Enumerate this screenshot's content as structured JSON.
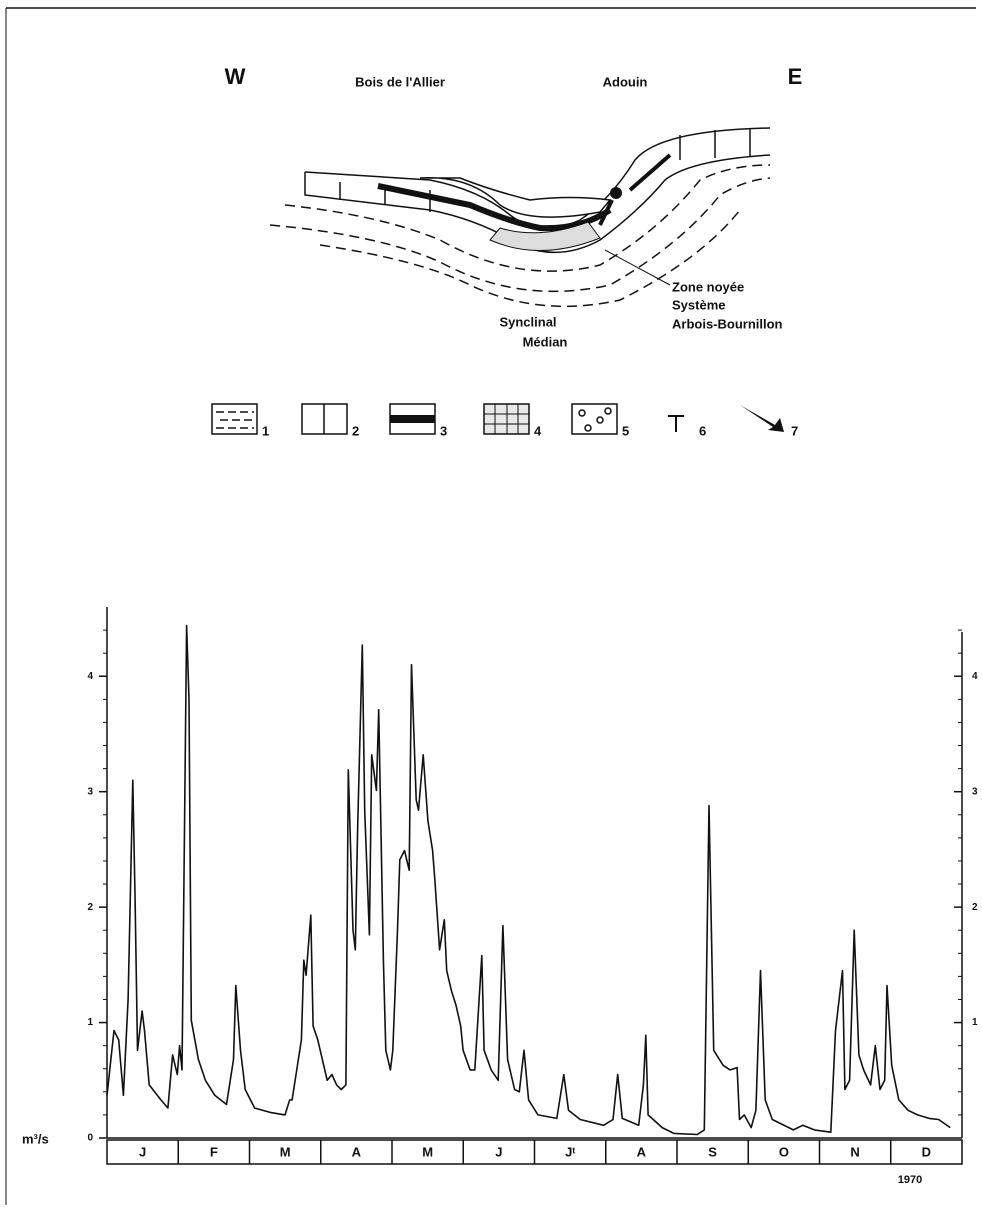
{
  "diagram": {
    "west": "W",
    "east": "E",
    "places": [
      "Bois de l'Allier",
      "Adouin"
    ],
    "zone": [
      "Zone noyée",
      "Système",
      "Arbois-Bournillon"
    ],
    "syncline": [
      "Synclinal",
      "Médian"
    ],
    "legend": [
      "1",
      "2",
      "3",
      "4",
      "5",
      "6",
      "7"
    ]
  },
  "chart_data": {
    "type": "line",
    "y_label": "m³/s",
    "year": "1970",
    "months": [
      "J",
      "F",
      "M",
      "A",
      "M",
      "J",
      "Jᵗ",
      "A",
      "S",
      "O",
      "N",
      "D"
    ],
    "xlim": [
      0,
      365
    ],
    "ylim": [
      0,
      4.6
    ],
    "yticks": [
      0,
      1,
      2,
      3,
      4
    ],
    "minor_yticks": [
      0.2,
      0.4,
      0.6,
      0.8,
      1.2,
      1.4,
      1.6,
      1.8,
      2.2,
      2.4,
      2.6,
      2.8,
      3.2,
      3.4,
      3.6,
      3.8,
      4.2,
      4.4
    ],
    "color": "#111111",
    "x": [
      0,
      3,
      5,
      7,
      9,
      11,
      12,
      13,
      15,
      16,
      18,
      23,
      26,
      28,
      30,
      31,
      32,
      34,
      35,
      36,
      39,
      42,
      46,
      51,
      54,
      55,
      57,
      59,
      63,
      70,
      76,
      78,
      79,
      83,
      84,
      85,
      87,
      88,
      90,
      91,
      94,
      96,
      98,
      100,
      102,
      103,
      105,
      106,
      107,
      109,
      110,
      112,
      113,
      115,
      116,
      118,
      119,
      121,
      122,
      124,
      125,
      127,
      129,
      130,
      132,
      133,
      135,
      137,
      139,
      140,
      142,
      144,
      145,
      147,
      149,
      151,
      152,
      155,
      157,
      160,
      161,
      164,
      167,
      169,
      171,
      174,
      176,
      178,
      180,
      184,
      192,
      195,
      197,
      202,
      212,
      216,
      218,
      220,
      227,
      229,
      230,
      231,
      237,
      242,
      252,
      255,
      257,
      259,
      263,
      266,
      269,
      270,
      272,
      275,
      277,
      279,
      281,
      284,
      293,
      297,
      302,
      309,
      311,
      314,
      315,
      317,
      319,
      321,
      323,
      326,
      328,
      330,
      332,
      333,
      335,
      338,
      342,
      346,
      351,
      355,
      360
    ],
    "values": [
      0.37,
      0.93,
      0.85,
      0.37,
      1.2,
      3.1,
      2.06,
      0.76,
      1.1,
      0.93,
      0.46,
      0.33,
      0.26,
      0.72,
      0.55,
      0.8,
      0.59,
      4.44,
      3.8,
      1.02,
      0.68,
      0.5,
      0.37,
      0.29,
      0.68,
      1.32,
      0.76,
      0.42,
      0.26,
      0.22,
      0.2,
      0.33,
      0.33,
      0.85,
      1.54,
      1.41,
      1.93,
      0.97,
      0.85,
      0.76,
      0.5,
      0.55,
      0.46,
      0.42,
      0.46,
      3.19,
      1.8,
      1.63,
      2.67,
      4.27,
      2.84,
      1.76,
      3.32,
      3.01,
      3.71,
      1.54,
      0.76,
      0.59,
      0.76,
      1.8,
      2.41,
      2.49,
      2.32,
      4.1,
      2.93,
      2.84,
      3.32,
      2.75,
      2.49,
      2.23,
      1.63,
      1.89,
      1.45,
      1.28,
      1.15,
      0.97,
      0.76,
      0.59,
      0.59,
      1.58,
      0.76,
      0.59,
      0.5,
      1.84,
      0.68,
      0.42,
      0.4,
      0.76,
      0.33,
      0.2,
      0.17,
      0.55,
      0.24,
      0.16,
      0.11,
      0.16,
      0.55,
      0.17,
      0.11,
      0.46,
      0.89,
      0.2,
      0.09,
      0.04,
      0.03,
      0.07,
      2.88,
      0.76,
      0.63,
      0.59,
      0.61,
      0.16,
      0.2,
      0.09,
      0.24,
      1.45,
      0.33,
      0.16,
      0.07,
      0.11,
      0.07,
      0.05,
      0.93,
      1.45,
      0.42,
      0.5,
      1.8,
      0.72,
      0.59,
      0.46,
      0.8,
      0.42,
      0.5,
      1.32,
      0.63,
      0.33,
      0.24,
      0.2,
      0.17,
      0.16,
      0.09
    ]
  }
}
